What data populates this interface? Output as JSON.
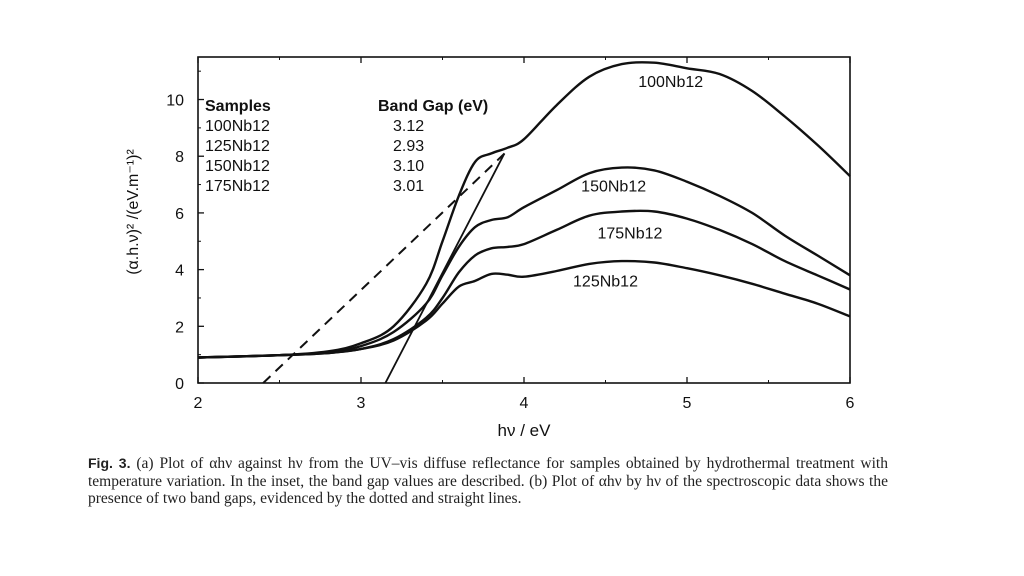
{
  "chart_data": {
    "type": "line",
    "xlabel": "hν / eV",
    "ylabel": "(α.h.ν)² /(eV.m⁻¹)²",
    "xlim": [
      2,
      6
    ],
    "ylim": [
      0,
      11.5
    ],
    "xticks": [
      2,
      3,
      4,
      5,
      6
    ],
    "yticks": [
      0,
      2,
      4,
      6,
      8,
      10
    ],
    "grid": false,
    "series": [
      {
        "name": "100Nb12",
        "style": "solid",
        "x": [
          2.0,
          2.5,
          2.8,
          3.0,
          3.2,
          3.4,
          3.5,
          3.6,
          3.7,
          3.8,
          3.9,
          4.0,
          4.2,
          4.4,
          4.6,
          4.8,
          5.0,
          5.2,
          5.4,
          5.6,
          5.8,
          6.0
        ],
        "y": [
          0.9,
          0.98,
          1.12,
          1.4,
          2.0,
          3.5,
          5.0,
          6.6,
          7.8,
          8.1,
          8.3,
          8.6,
          9.8,
          10.8,
          11.25,
          11.3,
          11.1,
          10.9,
          10.3,
          9.4,
          8.4,
          7.3
        ]
      },
      {
        "name": "150Nb12",
        "style": "solid",
        "x": [
          2.0,
          2.5,
          2.8,
          3.0,
          3.2,
          3.4,
          3.5,
          3.6,
          3.7,
          3.8,
          3.9,
          4.0,
          4.2,
          4.4,
          4.6,
          4.8,
          5.0,
          5.2,
          5.4,
          5.6,
          5.8,
          6.0
        ],
        "y": [
          0.9,
          0.98,
          1.08,
          1.3,
          1.8,
          2.8,
          3.8,
          4.8,
          5.5,
          5.75,
          5.85,
          6.2,
          6.8,
          7.4,
          7.6,
          7.5,
          7.1,
          6.6,
          6.0,
          5.2,
          4.5,
          3.8
        ]
      },
      {
        "name": "175Nb12",
        "style": "solid",
        "x": [
          2.0,
          2.5,
          2.8,
          3.0,
          3.2,
          3.4,
          3.5,
          3.6,
          3.7,
          3.8,
          3.9,
          4.0,
          4.2,
          4.4,
          4.6,
          4.8,
          5.0,
          5.2,
          5.4,
          5.6,
          5.8,
          6.0
        ],
        "y": [
          0.9,
          0.98,
          1.06,
          1.2,
          1.55,
          2.3,
          3.0,
          3.9,
          4.5,
          4.75,
          4.8,
          4.9,
          5.4,
          5.9,
          6.05,
          6.05,
          5.8,
          5.4,
          4.9,
          4.3,
          3.8,
          3.3
        ]
      },
      {
        "name": "125Nb12",
        "style": "solid",
        "x": [
          2.0,
          2.5,
          2.8,
          3.0,
          3.2,
          3.4,
          3.5,
          3.6,
          3.7,
          3.8,
          3.9,
          4.0,
          4.2,
          4.4,
          4.6,
          4.8,
          5.0,
          5.2,
          5.4,
          5.6,
          5.8,
          6.0
        ],
        "y": [
          0.9,
          0.98,
          1.06,
          1.2,
          1.5,
          2.2,
          2.8,
          3.4,
          3.6,
          3.85,
          3.82,
          3.75,
          3.95,
          4.2,
          4.3,
          4.25,
          4.05,
          3.8,
          3.5,
          3.15,
          2.8,
          2.35
        ]
      },
      {
        "name": "",
        "style": "dashed",
        "x": [
          2.4,
          3.9
        ],
        "y": [
          0,
          8.2
        ]
      },
      {
        "name": "",
        "style": "solid-thin",
        "x": [
          3.15,
          3.88
        ],
        "y": [
          0,
          8.1
        ]
      }
    ],
    "curve_labels": [
      {
        "text": "100Nb12",
        "x": 4.9,
        "y": 10.45
      },
      {
        "text": "150Nb12",
        "x": 4.55,
        "y": 6.75
      },
      {
        "text": "175Nb12",
        "x": 4.65,
        "y": 5.1
      },
      {
        "text": "125Nb12",
        "x": 4.5,
        "y": 3.4
      }
    ],
    "inset_table": {
      "headers": [
        "Samples",
        "Band Gap (eV)"
      ],
      "rows": [
        [
          "100Nb12",
          "3.12"
        ],
        [
          "125Nb12",
          "2.93"
        ],
        [
          "150Nb12",
          "3.10"
        ],
        [
          "175Nb12",
          "3.01"
        ]
      ]
    }
  },
  "caption": {
    "label": "Fig. 3.",
    "text": " (a) Plot of αhν against hν from the UV–vis diffuse reflectance for samples obtained by hydrothermal treatment with temperature variation. In the inset, the band gap values are described. (b) Plot of αhν by hν of the spectroscopic data shows the presence of two band gaps, evidenced by the dotted and straight lines."
  }
}
